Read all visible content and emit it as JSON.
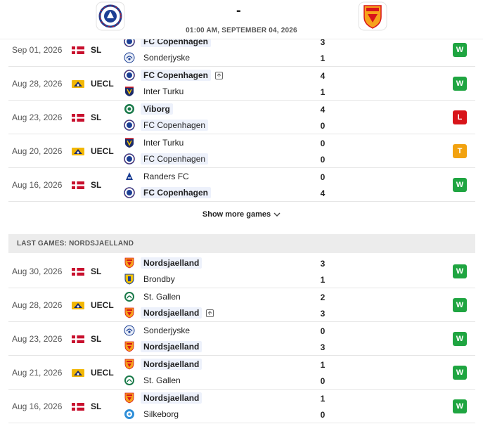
{
  "header": {
    "home_logo": "fc-copenhagen-crest-icon",
    "away_logo": "nordsjaelland-crest-icon",
    "score": "-",
    "datetime": "01:00 AM, SEPTEMBER 04, 2026"
  },
  "home_games": [
    {
      "date": "Sep 01, 2026",
      "comp": "SL",
      "flag": "denmark-flag-icon",
      "t1": {
        "name": "FC Copenhagen",
        "bold": true,
        "crest": "fc-copenhagen-crest-icon"
      },
      "s1": "3",
      "t2": {
        "name": "Sonderjyske",
        "bold": false,
        "crest": "sonderjyske-crest-icon"
      },
      "s2": "1",
      "result": "W"
    },
    {
      "date": "Aug 28, 2026",
      "comp": "UECL",
      "flag": "uefa-conference-league-icon",
      "t1": {
        "name": "FC Copenhagen",
        "bold": true,
        "crest": "fc-copenhagen-crest-icon",
        "advanced": true
      },
      "s1": "4",
      "t2": {
        "name": "Inter Turku",
        "bold": false,
        "crest": "inter-turku-crest-icon"
      },
      "s2": "1",
      "result": "W"
    },
    {
      "date": "Aug 23, 2026",
      "comp": "SL",
      "flag": "denmark-flag-icon",
      "t1": {
        "name": "Viborg",
        "bold": true,
        "crest": "viborg-crest-icon"
      },
      "s1": "4",
      "t2": {
        "name": "FC Copenhagen",
        "bold": false,
        "hl": true,
        "crest": "fc-copenhagen-crest-icon"
      },
      "s2": "0",
      "result": "L"
    },
    {
      "date": "Aug 20, 2026",
      "comp": "UECL",
      "flag": "uefa-conference-league-icon",
      "t1": {
        "name": "Inter Turku",
        "bold": false,
        "crest": "inter-turku-crest-icon"
      },
      "s1": "0",
      "t2": {
        "name": "FC Copenhagen",
        "bold": false,
        "hl": true,
        "crest": "fc-copenhagen-crest-icon"
      },
      "s2": "0",
      "result": "T"
    },
    {
      "date": "Aug 16, 2026",
      "comp": "SL",
      "flag": "denmark-flag-icon",
      "t1": {
        "name": "Randers FC",
        "bold": false,
        "crest": "randers-crest-icon"
      },
      "s1": "0",
      "t2": {
        "name": "FC Copenhagen",
        "bold": true,
        "crest": "fc-copenhagen-crest-icon"
      },
      "s2": "4",
      "result": "W"
    }
  ],
  "show_more_label": "Show more games",
  "section_title": "LAST GAMES: NORDSJAELLAND",
  "away_games": [
    {
      "date": "Aug 30, 2026",
      "comp": "SL",
      "flag": "denmark-flag-icon",
      "t1": {
        "name": "Nordsjaelland",
        "bold": true,
        "crest": "nordsjaelland-crest-icon"
      },
      "s1": "3",
      "t2": {
        "name": "Brondby",
        "bold": false,
        "crest": "brondby-crest-icon"
      },
      "s2": "1",
      "result": "W"
    },
    {
      "date": "Aug 28, 2026",
      "comp": "UECL",
      "flag": "uefa-conference-league-icon",
      "t1": {
        "name": "St. Gallen",
        "bold": false,
        "crest": "st-gallen-crest-icon"
      },
      "s1": "2",
      "t2": {
        "name": "Nordsjaelland",
        "bold": true,
        "crest": "nordsjaelland-crest-icon",
        "advanced": true
      },
      "s2": "3",
      "result": "W"
    },
    {
      "date": "Aug 23, 2026",
      "comp": "SL",
      "flag": "denmark-flag-icon",
      "t1": {
        "name": "Sonderjyske",
        "bold": false,
        "crest": "sonderjyske-crest-icon"
      },
      "s1": "0",
      "t2": {
        "name": "Nordsjaelland",
        "bold": true,
        "crest": "nordsjaelland-crest-icon"
      },
      "s2": "3",
      "result": "W"
    },
    {
      "date": "Aug 21, 2026",
      "comp": "UECL",
      "flag": "uefa-conference-league-icon",
      "t1": {
        "name": "Nordsjaelland",
        "bold": true,
        "crest": "nordsjaelland-crest-icon"
      },
      "s1": "1",
      "t2": {
        "name": "St. Gallen",
        "bold": false,
        "crest": "st-gallen-crest-icon"
      },
      "s2": "0",
      "result": "W"
    },
    {
      "date": "Aug 16, 2026",
      "comp": "SL",
      "flag": "denmark-flag-icon",
      "t1": {
        "name": "Nordsjaelland",
        "bold": true,
        "crest": "nordsjaelland-crest-icon"
      },
      "s1": "1",
      "t2": {
        "name": "Silkeborg",
        "bold": false,
        "crest": "silkeborg-crest-icon"
      },
      "s2": "0",
      "result": "W"
    }
  ],
  "colors": {
    "win": "#1fa541",
    "loss": "#d8141a",
    "draw": "#f2a20f",
    "team_highlight": "#edf1fb",
    "section_bg": "#ececec"
  }
}
